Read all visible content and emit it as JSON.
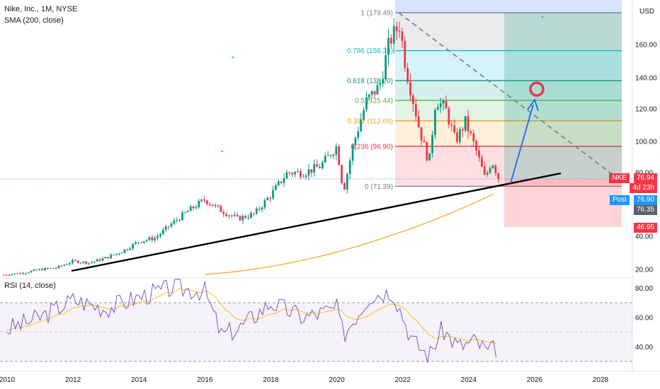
{
  "header": {
    "symbol_line": "Nike, Inc., 1M, NYSE",
    "sma_label": "SMA (200, close)",
    "rsi_label": "RSI (14, close)",
    "currency": "USD"
  },
  "price_axis": {
    "ticks": [
      "160.00",
      "140.00",
      "120.00",
      "100.00",
      "80.00",
      "40.00",
      "20.00"
    ],
    "tick_values": [
      160,
      140,
      120,
      100,
      80,
      40,
      20
    ]
  },
  "rsi_axis": {
    "ticks": [
      "80.00",
      "60.00",
      "40.00"
    ],
    "tick_values": [
      80,
      60,
      40
    ]
  },
  "time_axis": {
    "ticks": [
      "2010",
      "2012",
      "2014",
      "2016",
      "2018",
      "2020",
      "2022",
      "2024",
      "2026",
      "2028"
    ]
  },
  "price_tags": {
    "nke_label": "NKE",
    "nke_price": "76.94",
    "countdown": "4d 23h",
    "post_label": "Post",
    "post_price": "76.90",
    "gray_price": "76.35",
    "stop_price": "46.95"
  },
  "fib": {
    "levels": [
      {
        "ratio": "1",
        "value": 179.49,
        "label": "1 (179.49)",
        "color": "#787b86"
      },
      {
        "ratio": "0.786",
        "value": 156.34,
        "label": "0.786 (156.34)",
        "color": "#00bcd4"
      },
      {
        "ratio": "0.618",
        "value": 138.2,
        "label": "0.618 (138.20)",
        "color": "#089981"
      },
      {
        "ratio": "0.5",
        "value": 125.44,
        "label": "0.5 (125.44)",
        "color": "#4caf50"
      },
      {
        "ratio": "0.382",
        "value": 112.69,
        "label": "0.382 (112.69)",
        "color": "#f7a21b"
      },
      {
        "ratio": "0.236",
        "value": 96.9,
        "label": "0.236 (96.90)",
        "color": "#f23645"
      },
      {
        "ratio": "0",
        "value": 71.39,
        "label": "0 (71.39)",
        "color": "#787b86"
      }
    ]
  },
  "colors": {
    "up": "#089981",
    "down": "#f23645",
    "sma": "#f7a21b",
    "rsi": "#7e57c2",
    "rsi_ma": "#f5c518",
    "trendline": "#000000",
    "arrow": "#2962ff",
    "target_circle": "#e53950"
  },
  "chart_data": {
    "type": "candlestick",
    "interval": "1M",
    "symbol": "NKE",
    "x_range": [
      "2010",
      "2028"
    ],
    "y_range": [
      20,
      180
    ],
    "price_series": [
      {
        "t": 2010.0,
        "v": 17
      },
      {
        "t": 2010.5,
        "v": 18
      },
      {
        "t": 2011.0,
        "v": 20
      },
      {
        "t": 2011.5,
        "v": 21
      },
      {
        "t": 2012.0,
        "v": 25
      },
      {
        "t": 2012.5,
        "v": 24
      },
      {
        "t": 2013.0,
        "v": 27
      },
      {
        "t": 2013.5,
        "v": 31
      },
      {
        "t": 2014.0,
        "v": 37
      },
      {
        "t": 2014.5,
        "v": 39
      },
      {
        "t": 2015.0,
        "v": 48
      },
      {
        "t": 2015.5,
        "v": 56
      },
      {
        "t": 2016.0,
        "v": 63
      },
      {
        "t": 2016.5,
        "v": 56
      },
      {
        "t": 2017.0,
        "v": 51
      },
      {
        "t": 2017.5,
        "v": 54
      },
      {
        "t": 2018.0,
        "v": 66
      },
      {
        "t": 2018.5,
        "v": 80
      },
      {
        "t": 2019.0,
        "v": 80
      },
      {
        "t": 2019.5,
        "v": 84
      },
      {
        "t": 2020.0,
        "v": 97
      },
      {
        "t": 2020.2,
        "v": 68
      },
      {
        "t": 2020.5,
        "v": 98
      },
      {
        "t": 2020.9,
        "v": 125
      },
      {
        "t": 2021.3,
        "v": 135
      },
      {
        "t": 2021.6,
        "v": 162
      },
      {
        "t": 2021.9,
        "v": 172
      },
      {
        "t": 2022.1,
        "v": 146
      },
      {
        "t": 2022.5,
        "v": 108
      },
      {
        "t": 2022.8,
        "v": 86
      },
      {
        "t": 2023.0,
        "v": 126
      },
      {
        "t": 2023.3,
        "v": 120
      },
      {
        "t": 2023.6,
        "v": 100
      },
      {
        "t": 2023.9,
        "v": 112
      },
      {
        "t": 2024.2,
        "v": 96
      },
      {
        "t": 2024.5,
        "v": 76
      },
      {
        "t": 2024.7,
        "v": 88
      },
      {
        "t": 2024.9,
        "v": 76.94
      }
    ],
    "sma_200_visible_from": 2016.0,
    "sma_200_end_value": 68,
    "rsi": {
      "range": [
        20,
        90
      ],
      "bands": [
        70,
        50,
        30
      ],
      "series": [
        {
          "t": 2010.0,
          "v": 52
        },
        {
          "t": 2011.0,
          "v": 60
        },
        {
          "t": 2012.0,
          "v": 72
        },
        {
          "t": 2013.0,
          "v": 66
        },
        {
          "t": 2014.0,
          "v": 74
        },
        {
          "t": 2015.0,
          "v": 80
        },
        {
          "t": 2016.0,
          "v": 78
        },
        {
          "t": 2016.5,
          "v": 48
        },
        {
          "t": 2017.0,
          "v": 52
        },
        {
          "t": 2018.0,
          "v": 70
        },
        {
          "t": 2019.0,
          "v": 60
        },
        {
          "t": 2020.0,
          "v": 66
        },
        {
          "t": 2020.2,
          "v": 48
        },
        {
          "t": 2021.0,
          "v": 75
        },
        {
          "t": 2021.7,
          "v": 78
        },
        {
          "t": 2022.3,
          "v": 44
        },
        {
          "t": 2022.8,
          "v": 34
        },
        {
          "t": 2023.2,
          "v": 52
        },
        {
          "t": 2023.7,
          "v": 40
        },
        {
          "t": 2024.2,
          "v": 44
        },
        {
          "t": 2024.6,
          "v": 36
        },
        {
          "t": 2024.9,
          "v": 40
        }
      ]
    }
  }
}
